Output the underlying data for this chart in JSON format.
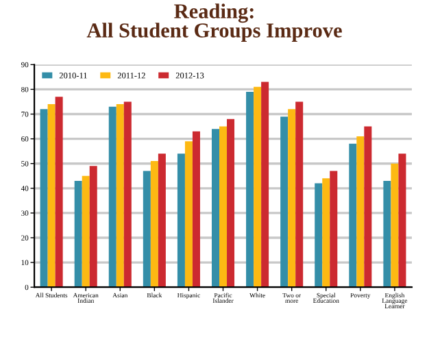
{
  "chart_data": {
    "type": "bar",
    "title": "Reading:\nAll Student Groups Improve",
    "categories": [
      "All Students",
      "American\nIndian",
      "Asian",
      "Black",
      "Hispanic",
      "Pacific\nIslander",
      "White",
      "Two or\nmore",
      "Special\nEducation",
      "Poverty",
      "English\nLanguage\nLearner"
    ],
    "series": [
      {
        "name": "2010-11",
        "color": "#348ea8",
        "values": [
          72,
          43,
          73,
          47,
          54,
          64,
          79,
          69,
          42,
          58,
          43
        ]
      },
      {
        "name": "2011-12",
        "color": "#fdb913",
        "values": [
          74,
          45,
          74,
          51,
          59,
          65,
          81,
          72,
          44,
          61,
          50
        ]
      },
      {
        "name": "2012-13",
        "color": "#cc2a30",
        "values": [
          77,
          49,
          75,
          54,
          63,
          68,
          83,
          75,
          47,
          65,
          54
        ]
      }
    ],
    "ylim": [
      0,
      90
    ],
    "yticks": [
      0,
      10,
      20,
      30,
      40,
      50,
      60,
      70,
      80,
      90
    ],
    "grid": "y",
    "legend": "top left"
  }
}
